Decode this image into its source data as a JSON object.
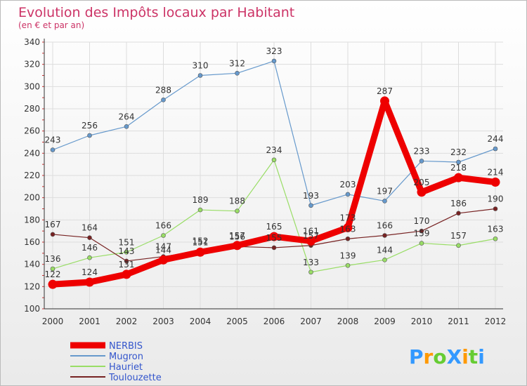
{
  "chart_data": {
    "type": "line",
    "title": "Evolution des Impôts locaux par Habitant",
    "subtitle": "(en € et par an)",
    "xlabel": "",
    "ylabel": "",
    "x": [
      "2000",
      "2001",
      "2002",
      "2003",
      "2004",
      "2005",
      "2006",
      "2007",
      "2008",
      "2009",
      "2010",
      "2011",
      "2012"
    ],
    "ylim": [
      100,
      340
    ],
    "yticks": [
      100,
      120,
      140,
      160,
      180,
      200,
      220,
      240,
      260,
      280,
      300,
      320,
      340
    ],
    "grid": true,
    "legend_placement": "bottom-left",
    "series": [
      {
        "name": "NERBIS",
        "color": "#ee0000",
        "values": [
          122,
          124,
          131,
          144,
          151,
          157,
          165,
          161,
          173,
          287,
          205,
          218,
          214
        ]
      },
      {
        "name": "Mugron",
        "color": "#6699cc",
        "values": [
          243,
          256,
          264,
          288,
          310,
          312,
          323,
          193,
          203,
          197,
          233,
          232,
          244
        ]
      },
      {
        "name": "Hauriet",
        "color": "#99dd66",
        "values": [
          136,
          146,
          151,
          166,
          189,
          188,
          234,
          133,
          139,
          144,
          159,
          157,
          163
        ]
      },
      {
        "name": "Toulouzette",
        "color": "#772222",
        "values": [
          167,
          164,
          143,
          147,
          152,
          156,
          155,
          157,
          163,
          166,
          170,
          186,
          190
        ]
      }
    ]
  },
  "labels": {
    "NERBIS": [
      "122",
      "124",
      "131",
      "144",
      "151",
      "157",
      "165",
      "161",
      "173",
      "287",
      "205",
      "218",
      "214"
    ],
    "Mugron": [
      "243",
      "256",
      "264",
      "288",
      "310",
      "312",
      "323",
      "193",
      "203",
      "197",
      "233",
      "232",
      "244"
    ],
    "Hauriet": [
      "136",
      "146",
      "151",
      "166",
      "189",
      "188",
      "234",
      "133",
      "139",
      "144",
      "159",
      "157",
      "163"
    ],
    "Toulouzette": [
      "167",
      "164",
      "143",
      "147",
      "152",
      "156",
      "155",
      "157",
      "163",
      "166",
      "170",
      "186",
      "190"
    ]
  },
  "logo": {
    "text": "ProXiti",
    "colors": [
      "#3399ff",
      "#ff9900",
      "#66cc33",
      "#3399ff",
      "#ff9900",
      "#66cc33",
      "#3399ff"
    ]
  },
  "colors": {
    "title": "#cc3366",
    "axis": "#333333",
    "grid": "#dddddd",
    "legend_text": "#3355cc"
  }
}
